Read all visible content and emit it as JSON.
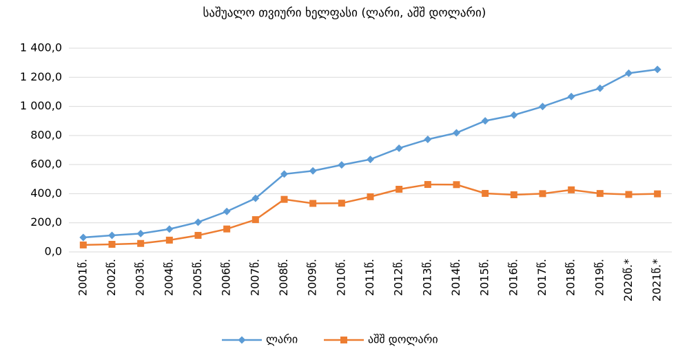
{
  "chart_data": {
    "type": "line",
    "title": "საშუალო თვიური  ხელფასი (ლარი, აშშ დოლარი)",
    "categories": [
      "2001წ.",
      "2002წ.",
      "2003წ.",
      "2004წ.",
      "2005წ.",
      "2006წ.",
      "2007წ.",
      "2008წ.",
      "2009წ.",
      "2010წ.",
      "2011წ.",
      "2012წ.",
      "2013წ.",
      "2014წ.",
      "2015წ.",
      "2016წ.",
      "2017წ.",
      "2018წ.",
      "2019წ.",
      "2020წ.*",
      "2021წ.*"
    ],
    "series": [
      {
        "name": "ლარი",
        "color": "#5b9bd5",
        "marker": "diamond",
        "values": [
          99.3,
          113.5,
          125.9,
          156.6,
          204.2,
          277.9,
          368.1,
          534.9,
          556.8,
          597.6,
          635.8,
          712.5,
          773.1,
          818.0,
          900.4,
          940.0,
          999.1,
          1067.7,
          1124.3,
          1228.1,
          1254.0
        ]
      },
      {
        "name": "აშშ დოლარი",
        "color": "#ed7d31",
        "marker": "square",
        "values": [
          47.6,
          52.0,
          58.0,
          80.8,
          113.7,
          157.5,
          221.7,
          361.0,
          333.3,
          334.8,
          379.0,
          430.5,
          463.2,
          462.1,
          402.0,
          392.6,
          400.3,
          426.5,
          401.3,
          394.7,
          398.9
        ]
      }
    ],
    "ylim": [
      0,
      1400
    ],
    "yticks": [
      {
        "value": 0,
        "label": "0,0"
      },
      {
        "value": 200,
        "label": "200,0"
      },
      {
        "value": 400,
        "label": "400,0"
      },
      {
        "value": 600,
        "label": "600,0"
      },
      {
        "value": 800,
        "label": "800,0"
      },
      {
        "value": 1000,
        "label": "1 000,0"
      },
      {
        "value": 1200,
        "label": "1 200,0"
      },
      {
        "value": 1400,
        "label": "1 400,0"
      }
    ],
    "grid": true,
    "legend": "bottom"
  }
}
